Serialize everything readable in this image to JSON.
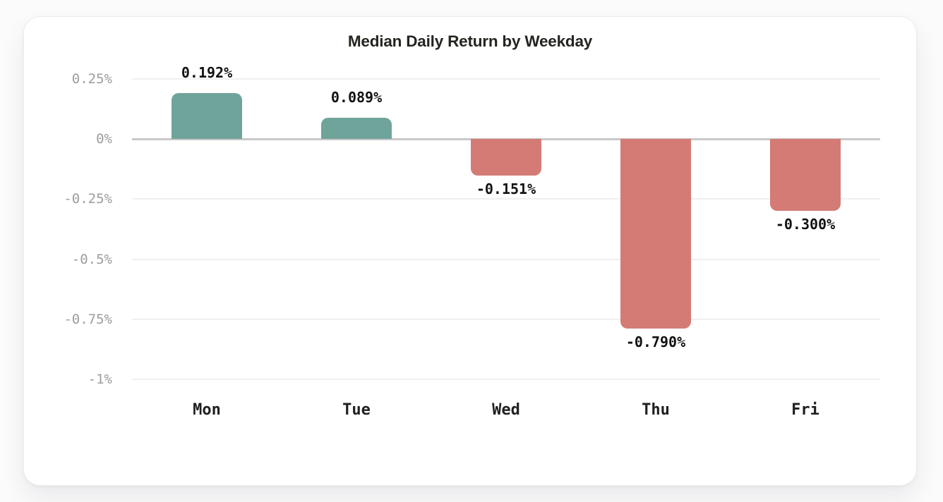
{
  "chart_data": {
    "type": "bar",
    "title": "Median Daily Return by Weekday",
    "categories": [
      "Mon",
      "Tue",
      "Wed",
      "Thu",
      "Fri"
    ],
    "values": [
      0.192,
      0.089,
      -0.151,
      -0.79,
      -0.3
    ],
    "value_labels": [
      "0.192%",
      "0.089%",
      "-0.151%",
      "-0.790%",
      "-0.300%"
    ],
    "unit": "%",
    "xlabel": "",
    "ylabel": "",
    "ylim": [
      -1.15,
      0.35
    ],
    "y_ticks": [
      {
        "value": 0.25,
        "label": "0.25%"
      },
      {
        "value": 0,
        "label": "0%"
      },
      {
        "value": -0.25,
        "label": "-0.25%"
      },
      {
        "value": -0.5,
        "label": "-0.5%"
      },
      {
        "value": -0.75,
        "label": "-0.75%"
      },
      {
        "value": -1,
        "label": "-1%"
      }
    ],
    "grid": true,
    "legend": null,
    "colors": {
      "positive_bar": "#6FA49B",
      "negative_bar": "#D47B76",
      "gridline": "#F0F0F0",
      "zero_line": "#C9C9C9",
      "tick_text": "#9C9C9C",
      "value_text": "#121212",
      "category_text": "#1F1F1F",
      "title_text": "#25241F",
      "card_background": "#FFFFFF",
      "page_background": "#FBFBFC"
    }
  }
}
